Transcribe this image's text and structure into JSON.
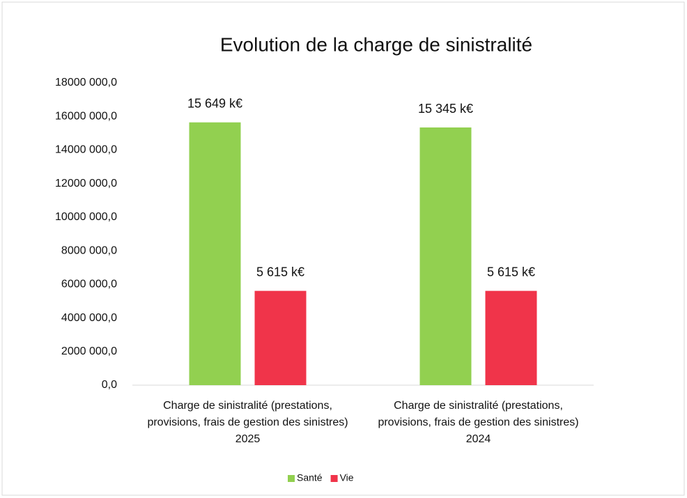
{
  "chart_data": {
    "type": "bar",
    "title": "Evolution de la charge de sinistralité",
    "categories": [
      "Charge de sinistralité (prestations, provisions, frais de gestion des sinistres) 2025",
      "Charge de sinistralité (prestations, provisions, frais de gestion des sinistres) 2024"
    ],
    "series": [
      {
        "name": "Santé",
        "color": "#92d050",
        "values": [
          15649000,
          15345000
        ],
        "value_labels": [
          "15 649 k€",
          "15 345 k€"
        ]
      },
      {
        "name": "Vie",
        "color": "#f0344a",
        "values": [
          5615000,
          5615000
        ],
        "value_labels": [
          "5 615 k€",
          "5 615 k€"
        ]
      }
    ],
    "ylim": [
      0,
      18000000
    ],
    "yticks": [
      {
        "value": 0,
        "label": "0,0"
      },
      {
        "value": 2000000,
        "label": "2000 000,0"
      },
      {
        "value": 4000000,
        "label": "4000 000,0"
      },
      {
        "value": 6000000,
        "label": "6000 000,0"
      },
      {
        "value": 8000000,
        "label": "8000 000,0"
      },
      {
        "value": 10000000,
        "label": "10000 000,0"
      },
      {
        "value": 12000000,
        "label": "12000 000,0"
      },
      {
        "value": 14000000,
        "label": "14000 000,0"
      },
      {
        "value": 16000000,
        "label": "16000 000,0"
      },
      {
        "value": 18000000,
        "label": "18000 000,0"
      }
    ],
    "grid": false,
    "legend": "bottom"
  }
}
